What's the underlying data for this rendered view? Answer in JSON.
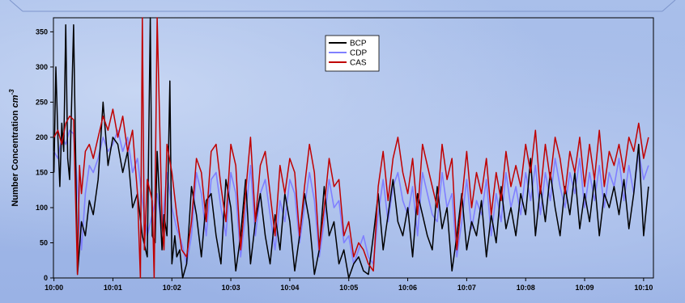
{
  "chart_data": {
    "type": "line",
    "title": "",
    "xlabel": "",
    "ylabel": "Number Concentration",
    "ylabel_unit": "cm",
    "ylabel_unit_exp": "-3",
    "ylim": [
      0,
      370
    ],
    "xlim": [
      -0.5,
      610
    ],
    "y_ticks": [
      0,
      50,
      100,
      150,
      200,
      250,
      300,
      350
    ],
    "x_ticks": [
      {
        "value": 0,
        "label": "10:00"
      },
      {
        "value": 60,
        "label": "10:01"
      },
      {
        "value": 120,
        "label": "10:02"
      },
      {
        "value": 180,
        "label": "10:03"
      },
      {
        "value": 240,
        "label": "10:04"
      },
      {
        "value": 300,
        "label": "10:05"
      },
      {
        "value": 360,
        "label": "10:06"
      },
      {
        "value": 420,
        "label": "10:07"
      },
      {
        "value": 480,
        "label": "10:08"
      },
      {
        "value": 540,
        "label": "10:09"
      },
      {
        "value": 600,
        "label": "10:10"
      }
    ],
    "legend_position": "top-center",
    "grid": false,
    "series": [
      {
        "name": "BCP",
        "color": "#000000",
        "x": [
          0,
          2,
          4,
          6,
          8,
          10,
          12,
          14,
          16,
          18,
          20,
          24,
          28,
          32,
          36,
          40,
          45,
          50,
          55,
          60,
          65,
          70,
          75,
          80,
          85,
          90,
          95,
          98,
          100,
          103,
          105,
          110,
          112,
          115,
          118,
          120,
          123,
          125,
          128,
          131,
          135,
          140,
          145,
          150,
          155,
          160,
          165,
          170,
          175,
          180,
          185,
          190,
          195,
          200,
          205,
          210,
          215,
          220,
          225,
          230,
          235,
          240,
          245,
          250,
          255,
          260,
          265,
          270,
          275,
          280,
          285,
          290,
          295,
          300,
          305,
          310,
          315,
          320,
          325,
          330,
          335,
          340,
          345,
          350,
          355,
          360,
          365,
          370,
          375,
          380,
          385,
          390,
          395,
          400,
          405,
          410,
          415,
          420,
          425,
          430,
          435,
          440,
          445,
          450,
          455,
          460,
          465,
          470,
          475,
          480,
          485,
          490,
          495,
          500,
          505,
          510,
          515,
          520,
          525,
          530,
          535,
          540,
          545,
          550,
          555,
          560,
          565,
          570,
          575,
          580,
          585,
          590,
          595,
          600,
          605
        ],
        "y": [
          150,
          300,
          200,
          130,
          220,
          180,
          360,
          170,
          140,
          250,
          360,
          5,
          80,
          60,
          110,
          90,
          140,
          250,
          160,
          200,
          190,
          150,
          180,
          100,
          120,
          60,
          30,
          370,
          60,
          50,
          180,
          40,
          90,
          60,
          280,
          20,
          60,
          30,
          40,
          0,
          20,
          130,
          90,
          30,
          110,
          120,
          60,
          20,
          140,
          100,
          10,
          60,
          140,
          20,
          80,
          120,
          60,
          20,
          90,
          40,
          120,
          80,
          10,
          60,
          120,
          80,
          5,
          40,
          130,
          60,
          80,
          20,
          40,
          0,
          20,
          30,
          10,
          5,
          60,
          120,
          40,
          90,
          140,
          80,
          60,
          100,
          30,
          120,
          90,
          60,
          40,
          130,
          70,
          100,
          10,
          60,
          120,
          40,
          80,
          60,
          110,
          30,
          90,
          50,
          130,
          70,
          100,
          60,
          120,
          90,
          170,
          60,
          130,
          80,
          150,
          100,
          60,
          130,
          90,
          150,
          70,
          120,
          80,
          140,
          60,
          120,
          100,
          130,
          90,
          140,
          70,
          120,
          190,
          60,
          130
        ]
      },
      {
        "name": "CDP",
        "color": "#8080ff",
        "x": [
          0,
          4,
          8,
          12,
          16,
          20,
          24,
          28,
          32,
          36,
          40,
          45,
          50,
          55,
          60,
          65,
          70,
          75,
          80,
          85,
          90,
          95,
          100,
          105,
          110,
          115,
          120,
          125,
          130,
          135,
          140,
          145,
          150,
          155,
          160,
          165,
          170,
          175,
          180,
          185,
          190,
          195,
          200,
          205,
          210,
          215,
          220,
          225,
          230,
          235,
          240,
          245,
          250,
          255,
          260,
          265,
          270,
          275,
          280,
          285,
          290,
          295,
          300,
          305,
          310,
          315,
          320,
          325,
          330,
          335,
          340,
          345,
          350,
          355,
          360,
          365,
          370,
          375,
          380,
          385,
          390,
          395,
          400,
          405,
          410,
          415,
          420,
          425,
          430,
          435,
          440,
          445,
          450,
          455,
          460,
          465,
          470,
          475,
          480,
          485,
          490,
          495,
          500,
          505,
          510,
          515,
          520,
          525,
          530,
          535,
          540,
          545,
          550,
          555,
          560,
          565,
          570,
          575,
          580,
          585,
          590,
          595,
          600,
          605
        ],
        "y": [
          180,
          170,
          200,
          190,
          210,
          205,
          130,
          40,
          120,
          160,
          150,
          170,
          200,
          180,
          190,
          210,
          180,
          200,
          150,
          170,
          110,
          60,
          90,
          120,
          70,
          150,
          100,
          70,
          50,
          20,
          60,
          150,
          120,
          60,
          140,
          150,
          100,
          60,
          150,
          120,
          30,
          90,
          160,
          60,
          120,
          140,
          90,
          40,
          110,
          80,
          140,
          120,
          50,
          100,
          150,
          110,
          30,
          80,
          140,
          100,
          110,
          50,
          60,
          20,
          40,
          60,
          30,
          20,
          90,
          140,
          80,
          130,
          150,
          110,
          90,
          130,
          60,
          150,
          120,
          90,
          80,
          150,
          100,
          120,
          30,
          80,
          140,
          70,
          110,
          90,
          140,
          60,
          120,
          80,
          150,
          100,
          130,
          90,
          150,
          110,
          160,
          90,
          150,
          110,
          170,
          130,
          100,
          150,
          120,
          170,
          100,
          150,
          110,
          160,
          100,
          150,
          130,
          170,
          110,
          160,
          120,
          180,
          140,
          160
        ]
      },
      {
        "name": "CAS",
        "color": "#c00000",
        "x": [
          0,
          4,
          8,
          12,
          16,
          20,
          24,
          26,
          28,
          32,
          36,
          40,
          45,
          50,
          55,
          60,
          65,
          70,
          75,
          80,
          85,
          88,
          90,
          92,
          95,
          100,
          102,
          105,
          110,
          112,
          115,
          120,
          125,
          130,
          135,
          140,
          145,
          150,
          155,
          160,
          165,
          170,
          175,
          180,
          185,
          190,
          195,
          200,
          205,
          210,
          215,
          220,
          225,
          230,
          235,
          240,
          245,
          250,
          255,
          260,
          265,
          270,
          275,
          280,
          285,
          290,
          295,
          300,
          305,
          310,
          315,
          320,
          325,
          330,
          335,
          340,
          345,
          350,
          355,
          360,
          365,
          370,
          375,
          380,
          385,
          390,
          395,
          400,
          405,
          410,
          415,
          420,
          425,
          430,
          435,
          440,
          445,
          450,
          455,
          460,
          465,
          470,
          475,
          480,
          485,
          490,
          495,
          500,
          505,
          510,
          515,
          520,
          525,
          530,
          535,
          540,
          545,
          550,
          555,
          560,
          565,
          570,
          575,
          580,
          585,
          590,
          595,
          600,
          605
        ],
        "y": [
          200,
          210,
          190,
          220,
          230,
          225,
          5,
          160,
          120,
          180,
          190,
          170,
          200,
          230,
          210,
          240,
          200,
          230,
          180,
          210,
          120,
          0,
          370,
          40,
          140,
          110,
          0,
          370,
          80,
          40,
          190,
          150,
          90,
          40,
          30,
          80,
          170,
          150,
          80,
          180,
          190,
          130,
          80,
          190,
          160,
          40,
          120,
          200,
          80,
          160,
          180,
          120,
          60,
          160,
          120,
          170,
          150,
          60,
          130,
          190,
          150,
          40,
          100,
          170,
          130,
          140,
          60,
          80,
          30,
          50,
          40,
          20,
          10,
          130,
          180,
          110,
          170,
          200,
          150,
          120,
          170,
          90,
          190,
          160,
          130,
          100,
          190,
          140,
          170,
          40,
          110,
          180,
          100,
          150,
          120,
          170,
          90,
          150,
          110,
          180,
          130,
          160,
          130,
          190,
          150,
          210,
          120,
          190,
          140,
          200,
          170,
          120,
          180,
          150,
          200,
          130,
          190,
          140,
          210,
          130,
          180,
          160,
          190,
          150,
          200,
          180,
          220,
          170,
          200
        ]
      }
    ]
  }
}
